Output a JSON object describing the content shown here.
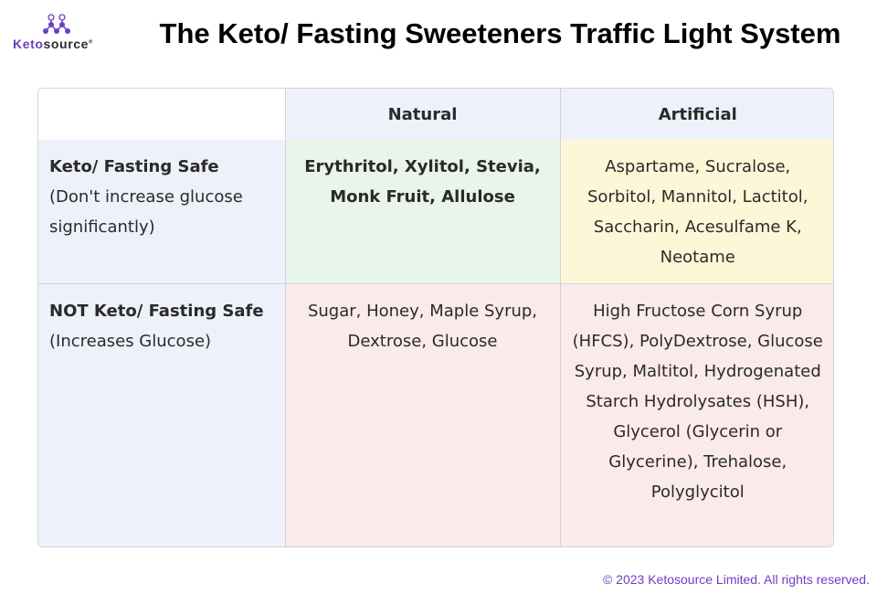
{
  "brand": {
    "logo_text_accent": "Keto",
    "logo_text_rest": "source",
    "registered_mark": "®",
    "logo_icon": "molecule-icon",
    "accent_color": "#6c3fc2"
  },
  "title": "The Keto/ Fasting Sweeteners Traffic Light System",
  "table": {
    "columns": [
      "",
      "Natural",
      "Artificial"
    ],
    "rows": [
      {
        "header": "Keto/ Fasting Safe",
        "subheader": "(Don't increase glucose significantly)",
        "natural": "Erythritol, Xylitol, Stevia, Monk Fruit, Allulose",
        "artificial": "Aspartame, Sucralose, Sorbitol, Mannitol, Lactitol, Saccharin, Acesulfame K, Neotame",
        "natural_color": "#e9f4ea",
        "artificial_color": "#fdf7d8"
      },
      {
        "header": "NOT Keto/ Fasting Safe",
        "subheader": "(Increases Glucose)",
        "natural": "Sugar, Honey, Maple Syrup, Dextrose, Glucose",
        "artificial": "High Fructose Corn Syrup (HFCS), PolyDextrose, Glucose Syrup, Maltitol, Hydrogenated Starch Hydrolysates (HSH), Glycerol (Glycerin or Glycerine), Trehalose, Polyglycitol",
        "natural_color": "#fbeaea",
        "artificial_color": "#fbeaea"
      }
    ]
  },
  "footer": "© 2023 Ketosource Limited. All rights reserved."
}
